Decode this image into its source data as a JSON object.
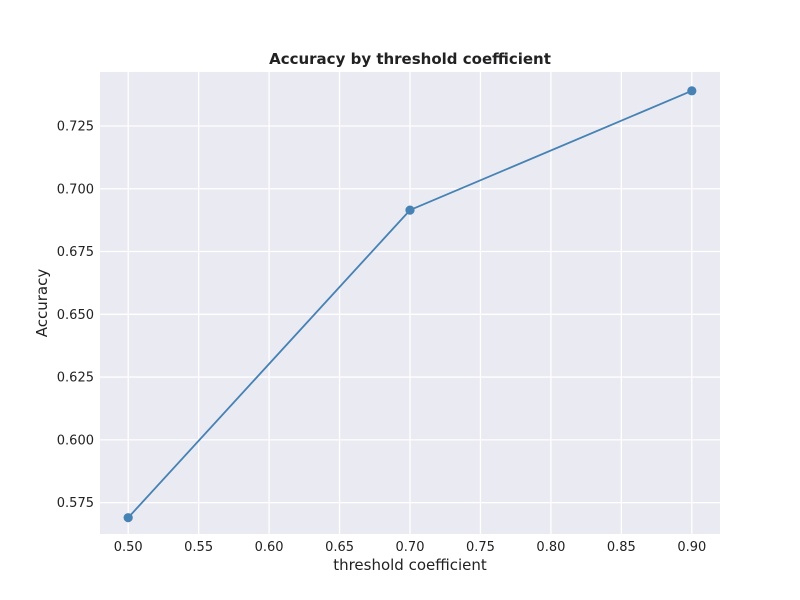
{
  "chart_data": {
    "type": "line",
    "title": "Accuracy by threshold coefficient",
    "xlabel": "threshold coefficient",
    "ylabel": "Accuracy",
    "xlim": [
      0.48,
      0.92
    ],
    "ylim": [
      0.5625,
      0.7465
    ],
    "x_ticks": [
      0.5,
      0.55,
      0.6,
      0.65,
      0.7,
      0.75,
      0.8,
      0.85,
      0.9
    ],
    "x_tick_labels": [
      "0.50",
      "0.55",
      "0.60",
      "0.65",
      "0.70",
      "0.75",
      "0.80",
      "0.85",
      "0.90"
    ],
    "y_ticks": [
      0.575,
      0.6,
      0.625,
      0.65,
      0.675,
      0.7,
      0.725
    ],
    "y_tick_labels": [
      "0.575",
      "0.600",
      "0.625",
      "0.650",
      "0.675",
      "0.700",
      "0.725"
    ],
    "grid": true,
    "series": [
      {
        "x": [
          0.5,
          0.7,
          0.9
        ],
        "y": [
          0.569,
          0.6915,
          0.739
        ],
        "color": "#4682b4",
        "marker": "circle"
      }
    ],
    "background_color": "#eaeaf2",
    "grid_color": "#ffffff"
  }
}
